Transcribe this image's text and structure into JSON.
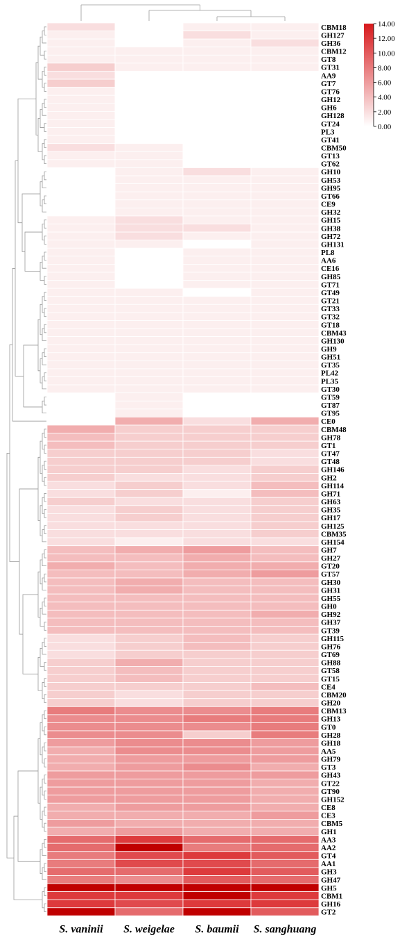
{
  "chart_data": {
    "type": "heatmap",
    "columns": [
      "S. vaninii",
      "S. weigelae",
      "S. baumii",
      "S. sanghuang"
    ],
    "rows": [
      "CBM18",
      "GH127",
      "GH36",
      "CBM12",
      "GT8",
      "GT31",
      "AA9",
      "GT7",
      "GT76",
      "GH12",
      "GH6",
      "GH128",
      "GT24",
      "PL3",
      "GT41",
      "CBM50",
      "GT13",
      "GT62",
      "GH10",
      "GH53",
      "GH95",
      "GT66",
      "CE9",
      "GH32",
      "GH15",
      "GH38",
      "GH72",
      "GH131",
      "PL8",
      "AA6",
      "CE16",
      "GH85",
      "GT71",
      "GT49",
      "GT21",
      "GT33",
      "GT32",
      "GT18",
      "CBM43",
      "GH130",
      "GH9",
      "GH51",
      "GT35",
      "PL42",
      "PL35",
      "GT30",
      "GT59",
      "GT87",
      "GT95",
      "CE0",
      "CBM48",
      "GH78",
      "GT1",
      "GT47",
      "GT48",
      "GH146",
      "GH2",
      "GH114",
      "GH71",
      "GH63",
      "GH35",
      "GH17",
      "GH125",
      "CBM35",
      "GH154",
      "GH7",
      "GH27",
      "GT20",
      "GT57",
      "GH30",
      "GH31",
      "GH55",
      "GH0",
      "GH92",
      "GH37",
      "GT39",
      "GH115",
      "GH76",
      "GT69",
      "GH88",
      "GT58",
      "GT15",
      "CE4",
      "CBM20",
      "GH20",
      "CBM13",
      "GH13",
      "GT0",
      "GH28",
      "GH18",
      "AA5",
      "GH79",
      "GT3",
      "GH43",
      "GT22",
      "GT90",
      "GH152",
      "CE8",
      "CE3",
      "CBM5",
      "GH1",
      "AA3",
      "AA2",
      "GT4",
      "AA1",
      "GH3",
      "GH47",
      "GH5",
      "CBM1",
      "GH16",
      "GT2"
    ],
    "values": [
      [
        2,
        0,
        1,
        1
      ],
      [
        1,
        0,
        2,
        1
      ],
      [
        1,
        0,
        1,
        2
      ],
      [
        1,
        1,
        1,
        1
      ],
      [
        1,
        1,
        1,
        1
      ],
      [
        3,
        1,
        1,
        1
      ],
      [
        2,
        0,
        0,
        0
      ],
      [
        3,
        0,
        0,
        0
      ],
      [
        1,
        0,
        0,
        0
      ],
      [
        1,
        0,
        0,
        0
      ],
      [
        1,
        0,
        0,
        0
      ],
      [
        1,
        0,
        0,
        0
      ],
      [
        1,
        0,
        0,
        0
      ],
      [
        1,
        0,
        0,
        0
      ],
      [
        1,
        0,
        0,
        0
      ],
      [
        2,
        1,
        0,
        0
      ],
      [
        1,
        1,
        0,
        0
      ],
      [
        1,
        1,
        0,
        0
      ],
      [
        0,
        1,
        2,
        1
      ],
      [
        0,
        1,
        1,
        1
      ],
      [
        0,
        1,
        1,
        1
      ],
      [
        0,
        1,
        1,
        1
      ],
      [
        0,
        1,
        1,
        1
      ],
      [
        0,
        1,
        1,
        1
      ],
      [
        1,
        2,
        1,
        1
      ],
      [
        1,
        2,
        2,
        1
      ],
      [
        1,
        2,
        1,
        1
      ],
      [
        1,
        1,
        0,
        1
      ],
      [
        1,
        0,
        1,
        1
      ],
      [
        1,
        0,
        1,
        1
      ],
      [
        1,
        0,
        1,
        1
      ],
      [
        1,
        0,
        1,
        1
      ],
      [
        1,
        0,
        1,
        1
      ],
      [
        1,
        1,
        0,
        1
      ],
      [
        1,
        1,
        1,
        1
      ],
      [
        1,
        1,
        1,
        1
      ],
      [
        1,
        1,
        1,
        1
      ],
      [
        1,
        1,
        1,
        1
      ],
      [
        1,
        1,
        1,
        1
      ],
      [
        1,
        1,
        1,
        1
      ],
      [
        1,
        1,
        1,
        1
      ],
      [
        1,
        1,
        1,
        1
      ],
      [
        1,
        1,
        1,
        1
      ],
      [
        1,
        1,
        1,
        1
      ],
      [
        1,
        1,
        1,
        1
      ],
      [
        1,
        1,
        1,
        1
      ],
      [
        0,
        1,
        0,
        0
      ],
      [
        0,
        1,
        0,
        0
      ],
      [
        0,
        1,
        0,
        0
      ],
      [
        0,
        5,
        2,
        5
      ],
      [
        5,
        3,
        3,
        3
      ],
      [
        4,
        3,
        3,
        3
      ],
      [
        4,
        3,
        3,
        3
      ],
      [
        3,
        3,
        3,
        2
      ],
      [
        3,
        3,
        3,
        2
      ],
      [
        3,
        3,
        2,
        3
      ],
      [
        3,
        2,
        2,
        3
      ],
      [
        2,
        3,
        2,
        4
      ],
      [
        2,
        3,
        1,
        4
      ],
      [
        3,
        2,
        2,
        3
      ],
      [
        2,
        3,
        2,
        3
      ],
      [
        2,
        3,
        2,
        3
      ],
      [
        2,
        2,
        2,
        3
      ],
      [
        2,
        2,
        2,
        3
      ],
      [
        2,
        1,
        2,
        2
      ],
      [
        4,
        5,
        6,
        4
      ],
      [
        4,
        4,
        5,
        4
      ],
      [
        5,
        4,
        5,
        5
      ],
      [
        4,
        4,
        5,
        6
      ],
      [
        4,
        5,
        4,
        4
      ],
      [
        4,
        5,
        4,
        4
      ],
      [
        4,
        4,
        4,
        4
      ],
      [
        4,
        4,
        4,
        4
      ],
      [
        4,
        4,
        4,
        5
      ],
      [
        4,
        4,
        4,
        4
      ],
      [
        4,
        4,
        4,
        4
      ],
      [
        2,
        3,
        4,
        3
      ],
      [
        2,
        3,
        4,
        3
      ],
      [
        2,
        3,
        3,
        3
      ],
      [
        3,
        5,
        3,
        3
      ],
      [
        3,
        4,
        3,
        3
      ],
      [
        3,
        4,
        3,
        3
      ],
      [
        3,
        3,
        3,
        4
      ],
      [
        3,
        2,
        3,
        3
      ],
      [
        3,
        2,
        3,
        3
      ],
      [
        8,
        7,
        7,
        8
      ],
      [
        7,
        7,
        8,
        8
      ],
      [
        7,
        7,
        7,
        8
      ],
      [
        7,
        7,
        3,
        8
      ],
      [
        6,
        7,
        7,
        6
      ],
      [
        5,
        7,
        7,
        6
      ],
      [
        5,
        6,
        6,
        6
      ],
      [
        5,
        6,
        7,
        5
      ],
      [
        6,
        6,
        6,
        6
      ],
      [
        6,
        6,
        6,
        5
      ],
      [
        6,
        6,
        6,
        5
      ],
      [
        6,
        6,
        6,
        5
      ],
      [
        5,
        6,
        6,
        5
      ],
      [
        5,
        5,
        5,
        6
      ],
      [
        6,
        5,
        5,
        5
      ],
      [
        5,
        6,
        5,
        5
      ],
      [
        9,
        12,
        9,
        9
      ],
      [
        9,
        13,
        8,
        9
      ],
      [
        8,
        11,
        12,
        10
      ],
      [
        8,
        11,
        11,
        9
      ],
      [
        9,
        9,
        12,
        10
      ],
      [
        8,
        7,
        10,
        9
      ],
      [
        14,
        14,
        14,
        14
      ],
      [
        12,
        12,
        13,
        12
      ],
      [
        12,
        11,
        12,
        12
      ],
      [
        13,
        9,
        13,
        10
      ]
    ],
    "color_scale": {
      "min": 0,
      "max": 14,
      "low_color": "#ffffff",
      "high_color": "#d7191c",
      "ticks": [
        "0.00",
        "2.00",
        "4.00",
        "6.00",
        "8.00",
        "10.00",
        "12.00",
        "14.00"
      ]
    },
    "legend_placement": "top-right",
    "title": "",
    "xlabel": "",
    "ylabel": ""
  }
}
